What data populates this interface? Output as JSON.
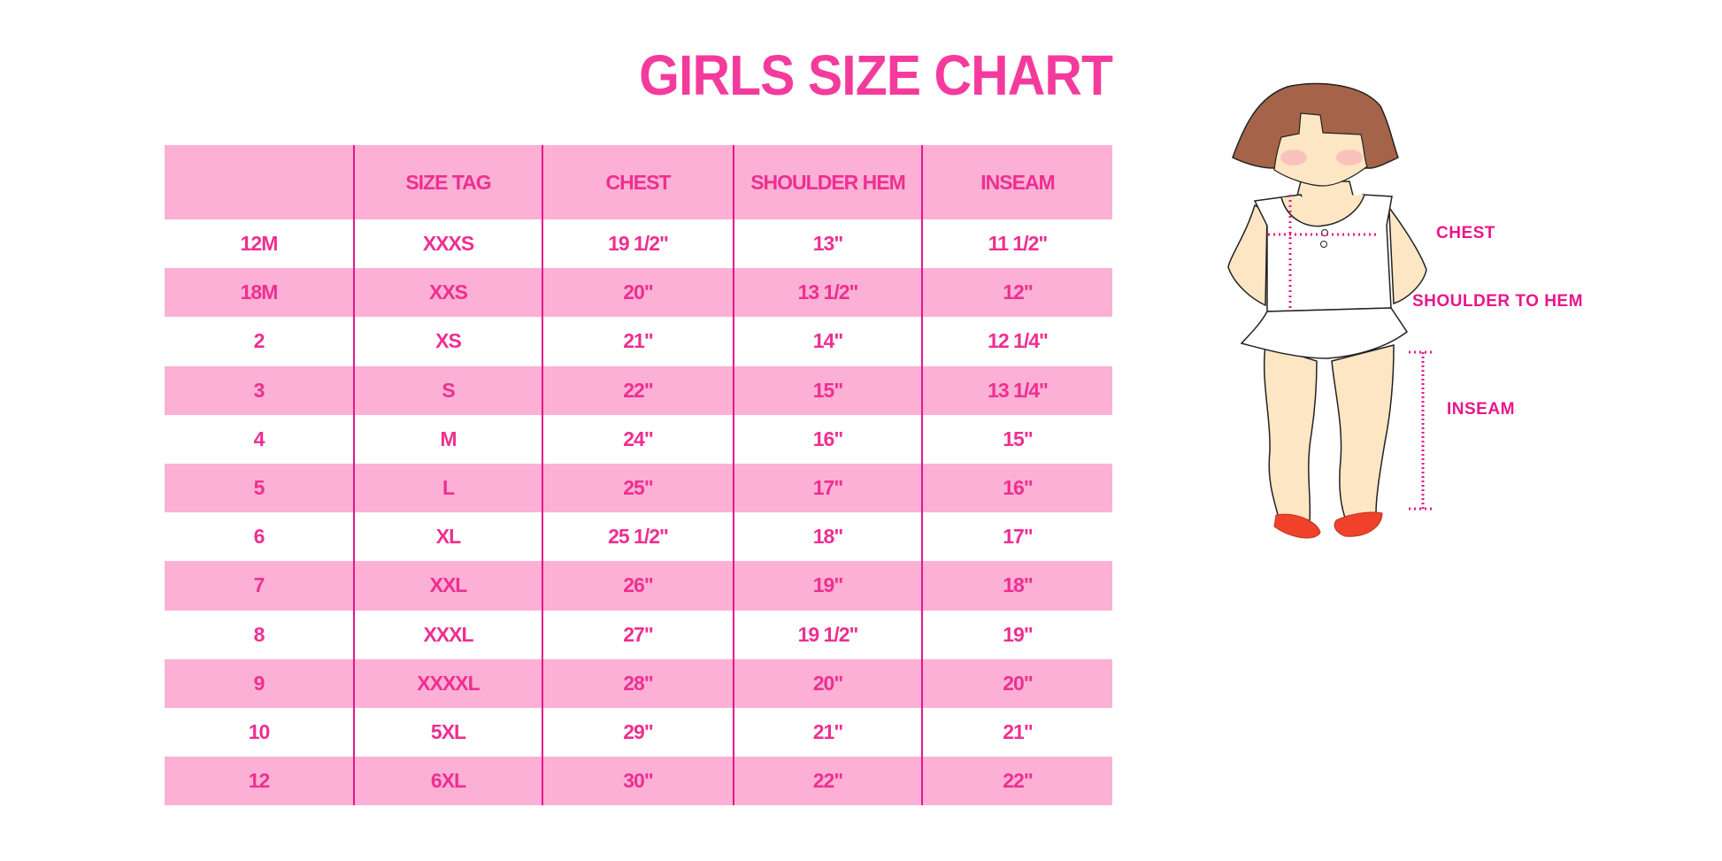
{
  "title": "GIRLS SIZE CHART",
  "table": {
    "headers": [
      "",
      "SIZE TAG",
      "CHEST",
      "SHOULDER HEM",
      "INSEAM"
    ],
    "rows": [
      [
        "12M",
        "XXXS",
        "19 1/2\"",
        "13\"",
        "11 1/2\""
      ],
      [
        "18M",
        "XXS",
        "20\"",
        "13 1/2\"",
        "12\""
      ],
      [
        "2",
        "XS",
        "21\"",
        "14\"",
        "12 1/4\""
      ],
      [
        "3",
        "S",
        "22\"",
        "15\"",
        "13 1/4\""
      ],
      [
        "4",
        "M",
        "24\"",
        "16\"",
        "15\""
      ],
      [
        "5",
        "L",
        "25\"",
        "17\"",
        "16\""
      ],
      [
        "6",
        "XL",
        "25 1/2\"",
        "18\"",
        "17\""
      ],
      [
        "7",
        "XXL",
        "26\"",
        "19\"",
        "18\""
      ],
      [
        "8",
        "XXXL",
        "27\"",
        "19 1/2\"",
        "19\""
      ],
      [
        "9",
        "XXXXL",
        "28\"",
        "20\"",
        "20\""
      ],
      [
        "10",
        "5XL",
        "29\"",
        "21\"",
        "21\""
      ],
      [
        "12",
        "6XL",
        "30\"",
        "22\"",
        "22\""
      ]
    ]
  },
  "illustration": {
    "labels": {
      "chest": "CHEST",
      "shoulder_to_hem": "SHOULDER TO HEM",
      "inseam": "INSEAM"
    }
  },
  "colors": {
    "accent": "#f43b9d",
    "row_band": "#fdb0d5",
    "divider": "#e6168c"
  }
}
